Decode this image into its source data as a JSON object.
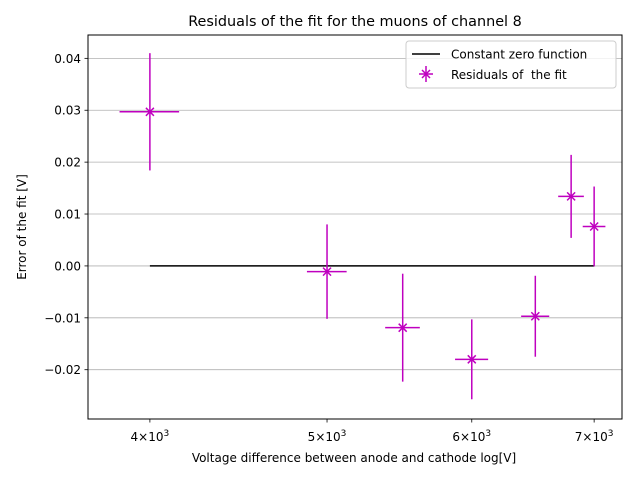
{
  "chart_data": {
    "type": "scatter",
    "title": "Residuals of the fit for the muons of channel 8",
    "xlabel": "Voltage difference between anode and cathode log[V]",
    "ylabel": "Error of the fit [V]",
    "x_scale": "log",
    "xlim": [
      3700,
      7250
    ],
    "ylim": [
      -0.0295,
      0.0445
    ],
    "x_ticks": [
      {
        "value": 4000,
        "base": "4",
        "exp": "3"
      },
      {
        "value": 5000,
        "base": "5",
        "exp": "3"
      },
      {
        "value": 6000,
        "base": "6",
        "exp": "3"
      },
      {
        "value": 7000,
        "base": "7",
        "exp": "3"
      }
    ],
    "y_ticks": [
      {
        "value": 0.04,
        "label": "0.04"
      },
      {
        "value": 0.03,
        "label": "0.03"
      },
      {
        "value": 0.02,
        "label": "0.02"
      },
      {
        "value": 0.01,
        "label": "0.01"
      },
      {
        "value": 0.0,
        "label": "0.00"
      },
      {
        "value": -0.01,
        "label": "−0.01"
      },
      {
        "value": -0.02,
        "label": "−0.02"
      }
    ],
    "grid": "y-major",
    "legend_position": "top-right",
    "series": [
      {
        "name": "Constant zero function",
        "kind": "line",
        "color": "#000000",
        "x": [
          4000,
          7000
        ],
        "y": [
          0.0,
          0.0
        ]
      },
      {
        "name": "Residuals of  the fit",
        "kind": "errorbar",
        "color": "#bf00bf",
        "points": [
          {
            "x": 4000,
            "y": 0.0297,
            "xerr": 150,
            "yerr": 0.0113
          },
          {
            "x": 5000,
            "y": -0.0011,
            "xerr": 125,
            "yerr": 0.0091
          },
          {
            "x": 5500,
            "y": -0.0119,
            "xerr": 120,
            "yerr": 0.0104
          },
          {
            "x": 6000,
            "y": -0.018,
            "xerr": 125,
            "yerr": 0.0077
          },
          {
            "x": 6500,
            "y": -0.0097,
            "xerr": 115,
            "yerr": 0.0078
          },
          {
            "x": 6800,
            "y": 0.0134,
            "xerr": 110,
            "yerr": 0.008
          },
          {
            "x": 7000,
            "y": 0.0076,
            "xerr": 100,
            "yerr": 0.0077
          }
        ]
      }
    ]
  }
}
